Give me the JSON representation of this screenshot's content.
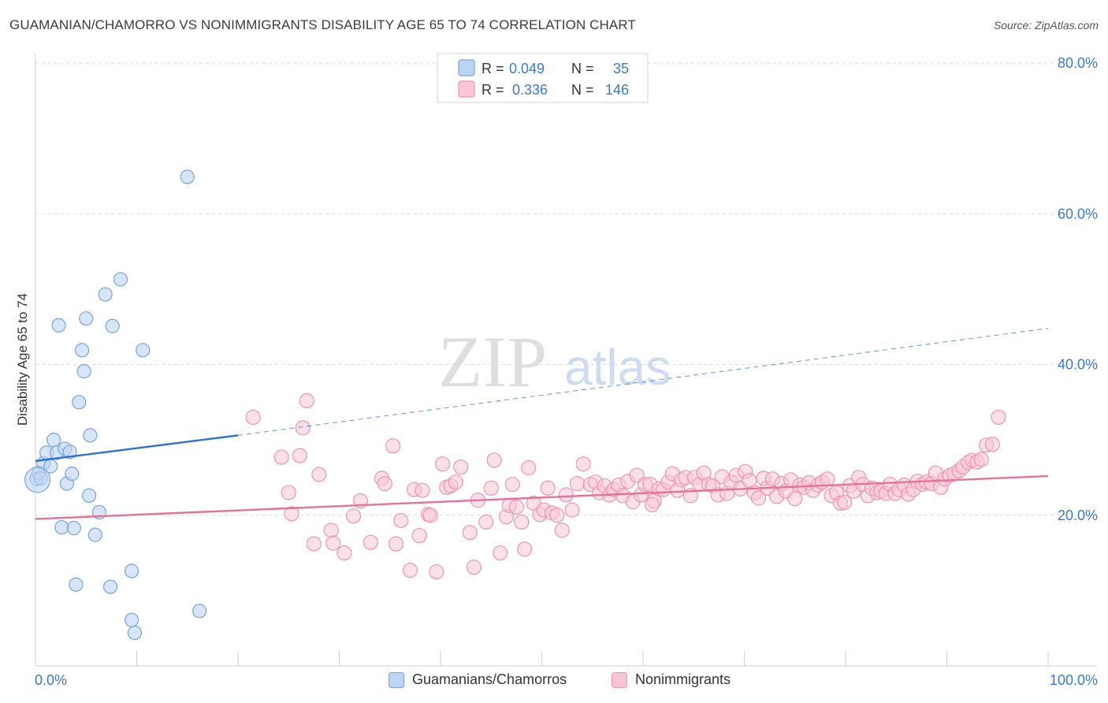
{
  "title": "GUAMANIAN/CHAMORRO VS NONIMMIGRANTS DISABILITY AGE 65 TO 74 CORRELATION CHART",
  "source": "Source: ZipAtlas.com",
  "watermark": {
    "zip": "ZIP",
    "atlas": "atlas"
  },
  "colors": {
    "blue_fill": "#bcd4f4",
    "blue_stroke": "#7aa3dd",
    "blue_line": "#2f6fd2",
    "pink_fill": "#f9c6d6",
    "pink_stroke": "#ec96b0",
    "pink_line": "#e4729a",
    "axis_label": "#3a78d0",
    "grid": "#dcdcdc"
  },
  "legend_top": {
    "rows": [
      {
        "r_label": "R =",
        "r_value": "0.049",
        "n_label": "N =",
        "n_value": "35"
      },
      {
        "r_label": "R =",
        "r_value": "0.336",
        "n_label": "N =",
        "n_value": "146"
      }
    ]
  },
  "chart_data": {
    "type": "scatter",
    "xlabel": "",
    "ylabel": "Disability Age 65 to 74",
    "xlim": [
      0,
      100
    ],
    "ylim": [
      0,
      80
    ],
    "x_tick_labels": [
      "0.0%",
      "100.0%"
    ],
    "y_tick_labels": [
      "20.0%",
      "40.0%",
      "60.0%",
      "80.0%"
    ],
    "y_ticks": [
      20,
      40,
      60,
      80
    ],
    "grid": "horizontal dashed",
    "series": [
      {
        "name": "Guamanians/Chamorros",
        "color": "blue",
        "trend": {
          "x0": 0,
          "y0": 27.2,
          "x1": 20,
          "y1": 30.6,
          "dashed_to_x": 100,
          "dashed_to_y": 44.8
        },
        "points": [
          [
            0.1,
            24.8
          ],
          [
            0.3,
            25.6
          ],
          [
            0.5,
            24.9
          ],
          [
            0.8,
            26.9
          ],
          [
            1.1,
            28.3
          ],
          [
            1.5,
            26.5
          ],
          [
            1.8,
            30.0
          ],
          [
            2.1,
            28.3
          ],
          [
            2.3,
            45.2
          ],
          [
            2.6,
            18.4
          ],
          [
            2.9,
            28.8
          ],
          [
            3.1,
            24.2
          ],
          [
            3.4,
            28.4
          ],
          [
            3.6,
            25.5
          ],
          [
            3.8,
            18.3
          ],
          [
            4.0,
            10.8
          ],
          [
            4.3,
            35.0
          ],
          [
            4.6,
            41.9
          ],
          [
            4.8,
            39.1
          ],
          [
            5.0,
            46.1
          ],
          [
            5.3,
            22.6
          ],
          [
            5.4,
            30.6
          ],
          [
            5.9,
            17.4
          ],
          [
            6.3,
            20.4
          ],
          [
            6.9,
            49.3
          ],
          [
            7.4,
            10.5
          ],
          [
            7.6,
            45.1
          ],
          [
            8.4,
            51.3
          ],
          [
            9.5,
            12.6
          ],
          [
            9.5,
            6.1
          ],
          [
            9.8,
            4.4
          ],
          [
            10.6,
            41.9
          ],
          [
            15.0,
            64.9
          ],
          [
            16.2,
            7.3
          ],
          [
            0.2,
            24.7
          ]
        ]
      },
      {
        "name": "Nonimmigrants",
        "color": "pink",
        "trend": {
          "x0": 0,
          "y0": 19.5,
          "x1": 100,
          "y1": 25.2
        },
        "points": [
          [
            21.5,
            33.0
          ],
          [
            24.3,
            27.7
          ],
          [
            25.0,
            23.0
          ],
          [
            25.3,
            20.2
          ],
          [
            26.1,
            27.9
          ],
          [
            26.4,
            31.6
          ],
          [
            26.8,
            35.2
          ],
          [
            27.5,
            16.2
          ],
          [
            28.0,
            25.4
          ],
          [
            29.2,
            18.0
          ],
          [
            29.4,
            16.3
          ],
          [
            30.5,
            15.0
          ],
          [
            31.4,
            19.9
          ],
          [
            32.1,
            21.9
          ],
          [
            33.1,
            16.4
          ],
          [
            34.2,
            24.9
          ],
          [
            34.5,
            24.2
          ],
          [
            35.3,
            29.2
          ],
          [
            35.6,
            16.2
          ],
          [
            36.1,
            19.3
          ],
          [
            37.0,
            12.7
          ],
          [
            37.4,
            23.4
          ],
          [
            37.9,
            17.3
          ],
          [
            38.2,
            23.3
          ],
          [
            38.8,
            20.1
          ],
          [
            39.0,
            20.0
          ],
          [
            39.6,
            12.5
          ],
          [
            40.2,
            26.8
          ],
          [
            40.6,
            23.7
          ],
          [
            41.0,
            23.9
          ],
          [
            41.5,
            24.4
          ],
          [
            42.0,
            26.4
          ],
          [
            42.9,
            17.7
          ],
          [
            43.3,
            13.1
          ],
          [
            43.7,
            22.0
          ],
          [
            44.5,
            19.1
          ],
          [
            45.0,
            23.6
          ],
          [
            45.3,
            27.3
          ],
          [
            45.9,
            15.0
          ],
          [
            46.5,
            19.8
          ],
          [
            46.8,
            21.3
          ],
          [
            47.1,
            24.1
          ],
          [
            47.5,
            21.1
          ],
          [
            48.0,
            19.1
          ],
          [
            48.3,
            15.5
          ],
          [
            48.7,
            26.3
          ],
          [
            49.2,
            21.6
          ],
          [
            49.8,
            20.1
          ],
          [
            50.2,
            20.7
          ],
          [
            50.6,
            23.6
          ],
          [
            51.0,
            20.3
          ],
          [
            51.5,
            20.0
          ],
          [
            52.0,
            18.0
          ],
          [
            52.4,
            22.7
          ],
          [
            53.0,
            20.7
          ],
          [
            53.5,
            24.2
          ],
          [
            54.1,
            26.8
          ],
          [
            54.8,
            24.1
          ],
          [
            55.3,
            24.4
          ],
          [
            55.7,
            23.0
          ],
          [
            56.2,
            23.9
          ],
          [
            56.7,
            22.7
          ],
          [
            57.1,
            23.4
          ],
          [
            57.6,
            24.0
          ],
          [
            58.0,
            22.6
          ],
          [
            58.5,
            24.5
          ],
          [
            59.0,
            21.8
          ],
          [
            59.4,
            25.3
          ],
          [
            59.8,
            22.7
          ],
          [
            60.2,
            24.1
          ],
          [
            60.7,
            24.1
          ],
          [
            61.1,
            21.9
          ],
          [
            61.6,
            23.5
          ],
          [
            62.0,
            23.4
          ],
          [
            62.5,
            24.4
          ],
          [
            62.9,
            25.5
          ],
          [
            63.4,
            23.3
          ],
          [
            63.8,
            24.7
          ],
          [
            64.2,
            25.0
          ],
          [
            64.7,
            22.6
          ],
          [
            65.1,
            25.0
          ],
          [
            65.6,
            24.1
          ],
          [
            66.0,
            25.6
          ],
          [
            66.5,
            24.1
          ],
          [
            66.9,
            23.9
          ],
          [
            67.4,
            22.7
          ],
          [
            67.8,
            25.1
          ],
          [
            68.3,
            22.9
          ],
          [
            68.7,
            24.4
          ],
          [
            69.2,
            25.3
          ],
          [
            69.6,
            23.5
          ],
          [
            70.1,
            25.8
          ],
          [
            70.5,
            24.6
          ],
          [
            71.0,
            23.0
          ],
          [
            71.4,
            22.3
          ],
          [
            71.9,
            24.9
          ],
          [
            72.3,
            23.6
          ],
          [
            72.8,
            24.8
          ],
          [
            73.2,
            22.5
          ],
          [
            73.7,
            24.2
          ],
          [
            74.1,
            23.2
          ],
          [
            74.6,
            24.7
          ],
          [
            75.0,
            22.2
          ],
          [
            75.5,
            24.0
          ],
          [
            75.9,
            23.7
          ],
          [
            76.4,
            24.3
          ],
          [
            76.8,
            23.3
          ],
          [
            77.3,
            24.0
          ],
          [
            77.7,
            24.4
          ],
          [
            78.2,
            24.8
          ],
          [
            78.6,
            22.6
          ],
          [
            79.1,
            23.0
          ],
          [
            79.5,
            21.6
          ],
          [
            79.9,
            21.7
          ],
          [
            80.4,
            23.9
          ],
          [
            80.8,
            23.2
          ],
          [
            81.3,
            25.0
          ],
          [
            81.7,
            24.1
          ],
          [
            82.2,
            22.6
          ],
          [
            82.6,
            23.6
          ],
          [
            83.1,
            23.0
          ],
          [
            83.5,
            23.2
          ],
          [
            84.0,
            22.9
          ],
          [
            84.4,
            24.1
          ],
          [
            84.9,
            22.9
          ],
          [
            85.3,
            23.4
          ],
          [
            85.8,
            24.0
          ],
          [
            86.2,
            22.8
          ],
          [
            86.7,
            23.4
          ],
          [
            87.1,
            24.5
          ],
          [
            87.6,
            24.1
          ],
          [
            88.0,
            24.4
          ],
          [
            88.5,
            24.2
          ],
          [
            88.9,
            25.6
          ],
          [
            89.4,
            23.7
          ],
          [
            89.8,
            24.8
          ],
          [
            90.3,
            25.3
          ],
          [
            90.7,
            25.5
          ],
          [
            91.2,
            25.9
          ],
          [
            91.6,
            26.4
          ],
          [
            92.1,
            27.0
          ],
          [
            92.5,
            27.3
          ],
          [
            93.0,
            27.1
          ],
          [
            93.4,
            27.4
          ],
          [
            93.9,
            29.3
          ],
          [
            94.5,
            29.4
          ],
          [
            95.1,
            33.0
          ],
          [
            60.9,
            21.4
          ]
        ]
      }
    ]
  },
  "legend_bottom": [
    {
      "label": "Guamanians/Chamorros"
    },
    {
      "label": "Nonimmigrants"
    }
  ]
}
